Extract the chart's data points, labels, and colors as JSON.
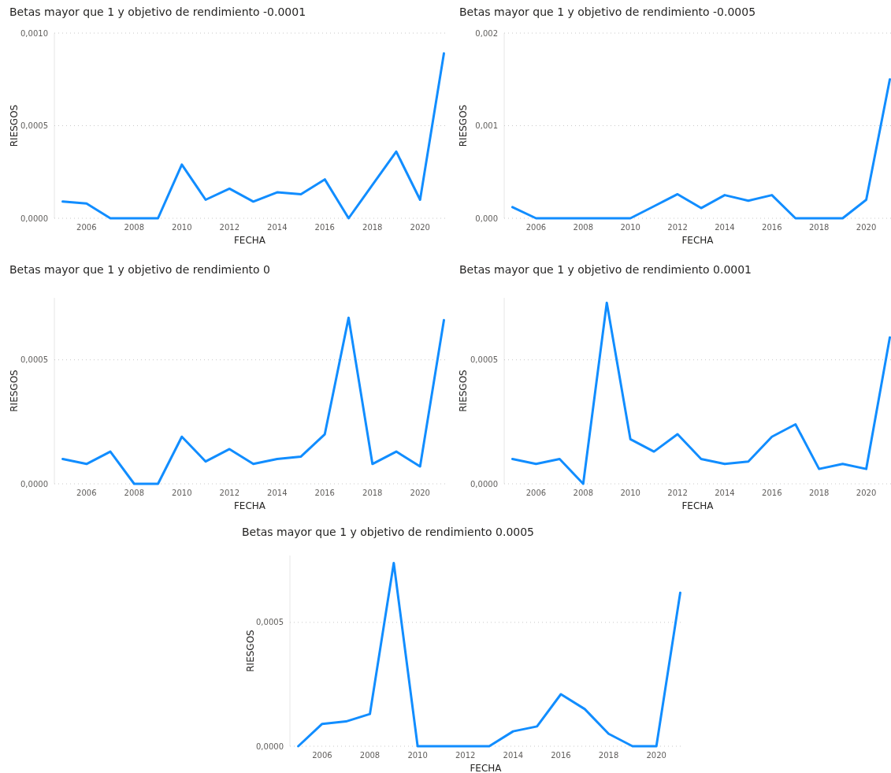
{
  "chart_data": [
    {
      "type": "line",
      "title": "Betas mayor que 1 y objetivo de rendimiento -0.0001",
      "xlabel": "FECHA",
      "ylabel": "RIESGOS",
      "grid": "y",
      "x": [
        2005,
        2006,
        2007,
        2008,
        2009,
        2010,
        2011,
        2012,
        2013,
        2014,
        2015,
        2016,
        2017,
        2018,
        2019,
        2020,
        2021
      ],
      "series": [
        {
          "color": "#118dff",
          "values": [
            9e-05,
            8e-05,
            0,
            0,
            0,
            0.00029,
            0.0001,
            0.00016,
            9e-05,
            0.00014,
            0.00013,
            0.00021,
            0,
            0.00018,
            0.00036,
            0.0001,
            0.00089
          ]
        }
      ],
      "xlim": [
        2004.65,
        2021.05
      ],
      "xticks": [
        2006,
        2008,
        2010,
        2012,
        2014,
        2016,
        2018,
        2020
      ],
      "ylim": [
        0,
        0.001
      ],
      "yticks": [
        {
          "value": 0,
          "label": "0,0000"
        },
        {
          "value": 0.0005,
          "label": "0,0005"
        },
        {
          "value": 0.001,
          "label": "0,0010"
        }
      ]
    },
    {
      "type": "line",
      "title": "Betas mayor que 1 y objetivo de rendimiento -0.0005",
      "xlabel": "FECHA",
      "ylabel": "RIESGOS",
      "grid": "y",
      "x": [
        2005,
        2006,
        2007,
        2008,
        2009,
        2010,
        2011,
        2012,
        2013,
        2014,
        2015,
        2016,
        2017,
        2018,
        2019,
        2020,
        2021
      ],
      "series": [
        {
          "color": "#118dff",
          "values": [
            0.00012,
            0,
            0,
            0,
            0,
            0,
            0.00013,
            0.00026,
            0.00011,
            0.00025,
            0.00019,
            0.00025,
            0,
            0,
            0,
            0.0002,
            0.0015
          ]
        }
      ],
      "xlim": [
        2004.65,
        2021.05
      ],
      "xticks": [
        2006,
        2008,
        2010,
        2012,
        2014,
        2016,
        2018,
        2020
      ],
      "ylim": [
        0,
        0.002
      ],
      "yticks": [
        {
          "value": 0,
          "label": "0,000"
        },
        {
          "value": 0.001,
          "label": "0,001"
        },
        {
          "value": 0.002,
          "label": "0,002"
        }
      ]
    },
    {
      "type": "line",
      "title": "Betas mayor que 1 y objetivo de rendimiento 0",
      "xlabel": "FECHA",
      "ylabel": "RIESGOS",
      "grid": "y",
      "x": [
        2005,
        2006,
        2007,
        2008,
        2009,
        2010,
        2011,
        2012,
        2013,
        2014,
        2015,
        2016,
        2017,
        2018,
        2019,
        2020,
        2021
      ],
      "series": [
        {
          "color": "#118dff",
          "values": [
            0.0001,
            8e-05,
            0.00013,
            0,
            0,
            0.00019,
            9e-05,
            0.00014,
            8e-05,
            0.0001,
            0.00011,
            0.0002,
            0.00067,
            8e-05,
            0.00013,
            7e-05,
            0.00066
          ]
        }
      ],
      "xlim": [
        2004.65,
        2021.05
      ],
      "xticks": [
        2006,
        2008,
        2010,
        2012,
        2014,
        2016,
        2018,
        2020
      ],
      "ylim": [
        0,
        0.00075
      ],
      "yticks": [
        {
          "value": 0,
          "label": "0,0000"
        },
        {
          "value": 0.0005,
          "label": "0,0005"
        }
      ]
    },
    {
      "type": "line",
      "title": "Betas mayor que 1 y objetivo de rendimiento 0.0001",
      "xlabel": "FECHA",
      "ylabel": "RIESGOS",
      "grid": "y",
      "x": [
        2005,
        2006,
        2007,
        2008,
        2009,
        2010,
        2011,
        2012,
        2013,
        2014,
        2015,
        2016,
        2017,
        2018,
        2019,
        2020,
        2021
      ],
      "series": [
        {
          "color": "#118dff",
          "values": [
            0.0001,
            8e-05,
            0.0001,
            0,
            0.00073,
            0.00018,
            0.00013,
            0.0002,
            0.0001,
            8e-05,
            9e-05,
            0.00019,
            0.00024,
            6e-05,
            8e-05,
            6e-05,
            0.00059
          ]
        }
      ],
      "xlim": [
        2004.65,
        2021.05
      ],
      "xticks": [
        2006,
        2008,
        2010,
        2012,
        2014,
        2016,
        2018,
        2020
      ],
      "ylim": [
        0,
        0.00075
      ],
      "yticks": [
        {
          "value": 0,
          "label": "0,0000"
        },
        {
          "value": 0.0005,
          "label": "0,0005"
        }
      ]
    },
    {
      "type": "line",
      "title": "Betas mayor que 1 y objetivo de rendimiento 0.0005",
      "xlabel": "FECHA",
      "ylabel": "RIESGOS",
      "grid": "y",
      "x": [
        2005,
        2006,
        2007,
        2008,
        2009,
        2010,
        2011,
        2012,
        2013,
        2014,
        2015,
        2016,
        2017,
        2018,
        2019,
        2020,
        2021
      ],
      "series": [
        {
          "color": "#118dff",
          "values": [
            0,
            9e-05,
            0.0001,
            0.00013,
            0.00074,
            0,
            0,
            0,
            0,
            6e-05,
            8e-05,
            0.00021,
            0.00015,
            5e-05,
            0,
            0,
            0.00062
          ]
        }
      ],
      "xlim": [
        2004.65,
        2021.05
      ],
      "xticks": [
        2006,
        2008,
        2010,
        2012,
        2014,
        2016,
        2018,
        2020
      ],
      "ylim": [
        0,
        0.00077
      ],
      "yticks": [
        {
          "value": 0,
          "label": "0,0000"
        },
        {
          "value": 0.0005,
          "label": "0,0005"
        }
      ]
    }
  ]
}
